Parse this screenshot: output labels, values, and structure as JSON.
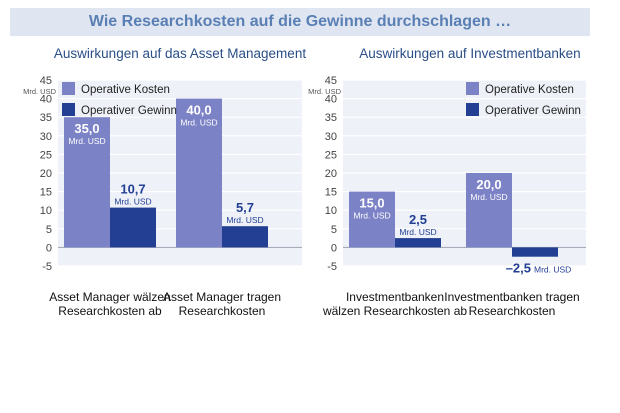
{
  "header": {
    "title": "Wie Researchkosten auf die Gewinne durchschlagen …"
  },
  "colors": {
    "operative_kosten": "#7c82c6",
    "operativer_gewinn": "#223f94",
    "banner_bg": "#dfe6f1",
    "title_text": "#5a7fb4",
    "subtitle_text": "#2a4e88"
  },
  "chart_data": [
    {
      "type": "bar",
      "title": "Auswirkungen auf das Asset Management",
      "ylabel": "Mrd. USD",
      "ylim": [
        -5,
        45
      ],
      "yticks": [
        "45",
        "40",
        "35",
        "30",
        "25",
        "20",
        "15",
        "10",
        "5",
        "0",
        "-5"
      ],
      "grid": true,
      "legend_position": "top-left",
      "categories": [
        [
          "Asset Manager wälzen",
          "Researchkosten ab"
        ],
        [
          "Asset Manager tragen",
          "Researchkosten"
        ]
      ],
      "series": [
        {
          "name": "Operative Kosten",
          "values": [
            35.0,
            40.0
          ],
          "labels": [
            "35,0",
            "40,0"
          ]
        },
        {
          "name": "Operativer Gewinn",
          "values": [
            10.7,
            5.7
          ],
          "labels": [
            "10,7",
            "5,7"
          ]
        }
      ],
      "unit_label": "Mrd. USD"
    },
    {
      "type": "bar",
      "title": "Auswirkungen auf Investmentbanken",
      "ylabel": "Mrd. USD",
      "ylim": [
        -5,
        45
      ],
      "yticks": [
        "45",
        "40",
        "35",
        "30",
        "25",
        "20",
        "15",
        "10",
        "5",
        "0",
        "-5"
      ],
      "grid": true,
      "legend_position": "top-right",
      "categories": [
        [
          "Investmentbanken",
          "wälzen Researchkosten ab"
        ],
        [
          "Investmentbanken tragen",
          "Researchkosten"
        ]
      ],
      "series": [
        {
          "name": "Operative Kosten",
          "values": [
            15.0,
            20.0
          ],
          "labels": [
            "15,0",
            "20,0"
          ]
        },
        {
          "name": "Operativer Gewinn",
          "values": [
            2.5,
            -2.5
          ],
          "labels": [
            "2,5",
            "–2,5"
          ]
        }
      ],
      "unit_label": "Mrd. USD"
    }
  ]
}
